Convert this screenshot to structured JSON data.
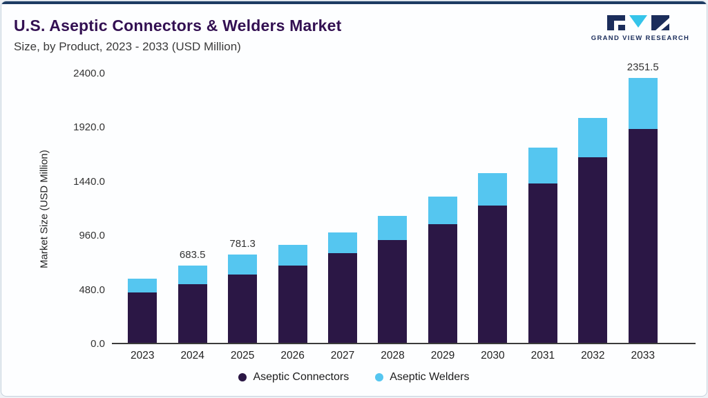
{
  "header": {
    "title": "U.S. Aseptic Connectors & Welders Market",
    "subtitle": "Size, by Product, 2023 - 2033 (USD Million)"
  },
  "logo": {
    "text": "GRAND VIEW RESEARCH",
    "navy": "#1b2d5b",
    "cyan": "#35c4ea"
  },
  "chart_data": {
    "type": "bar",
    "stacked": true,
    "title": "U.S. Aseptic Connectors & Welders Market Size, by Product, 2023 - 2033 (USD Million)",
    "ylabel": "Market Size (USD Million)",
    "ylim": [
      0,
      2400
    ],
    "yticks": [
      0.0,
      480.0,
      960.0,
      1440.0,
      1920.0,
      2400.0
    ],
    "grid": false,
    "legend_position": "bottom",
    "categories": [
      "2023",
      "2024",
      "2025",
      "2026",
      "2027",
      "2028",
      "2029",
      "2030",
      "2031",
      "2032",
      "2033"
    ],
    "series": [
      {
        "name": "Aseptic Connectors",
        "color": "#2b1745",
        "values": [
          450.0,
          520.0,
          605.0,
          685.0,
          795.0,
          915.0,
          1055.0,
          1220.0,
          1415.0,
          1650.0,
          1900.0
        ]
      },
      {
        "name": "Aseptic Welders",
        "color": "#55c6f0",
        "values": [
          120.0,
          163.5,
          176.3,
          185.0,
          185.0,
          210.0,
          245.0,
          285.0,
          320.0,
          345.0,
          451.5
        ]
      }
    ],
    "totals": [
      570.0,
      683.5,
      781.3,
      870.0,
      980.0,
      1125.0,
      1300.0,
      1505.0,
      1735.0,
      1995.0,
      2351.5
    ],
    "bar_value_labels": [
      "",
      "683.5",
      "781.3",
      "",
      "",
      "",
      "",
      "",
      "",
      "",
      "2351.5"
    ]
  }
}
